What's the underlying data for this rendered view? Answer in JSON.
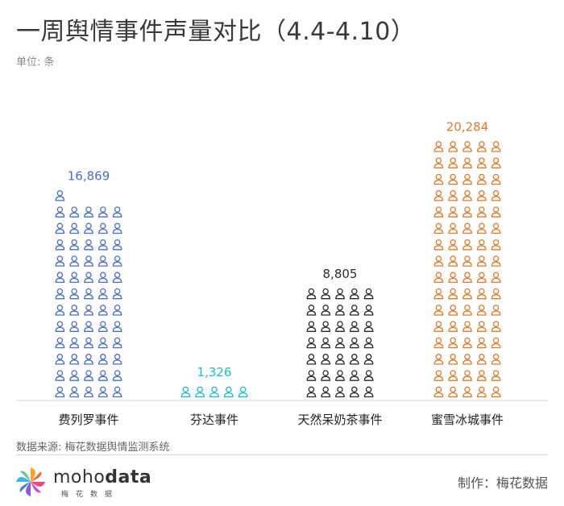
{
  "title": "一周舆情事件声量对比（4.4-4.10）",
  "unit_label": "单位: 条",
  "source": "数据来源: 梅花数据舆情监测系统",
  "credit": "制作：梅花数据",
  "logo": {
    "brand_prefix": "moho",
    "brand_suffix": "data",
    "subtitle": "梅花数据"
  },
  "chart_data": {
    "type": "bar",
    "categories": [
      "费列罗事件",
      "芬达事件",
      "天然呆奶茶事件",
      "蜜雪冰城事件"
    ],
    "values": [
      16869,
      1326,
      8805,
      20284
    ],
    "value_labels": [
      "16,869",
      "1,326",
      "8,805",
      "20,284"
    ],
    "colors": [
      "#4a6fc9",
      "#1cbccf",
      "#2b2b2b",
      "#e07a2e"
    ],
    "icon_counts": [
      61,
      5,
      35,
      80
    ],
    "icon_name": "person-icon",
    "icons_per_row": 5,
    "grid": false,
    "legend": "none"
  }
}
